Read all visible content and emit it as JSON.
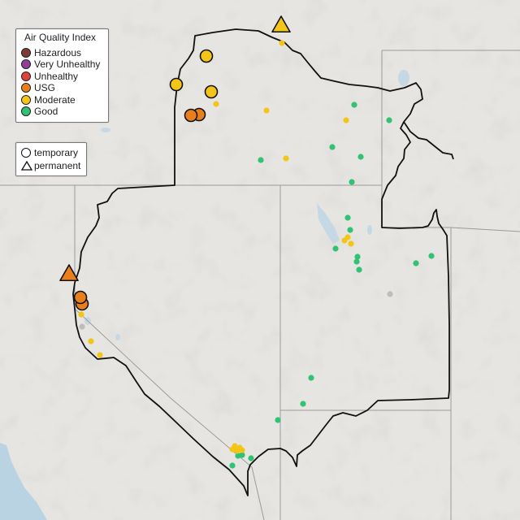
{
  "legend": {
    "title": "Air Quality Index",
    "categories": [
      {
        "label": "Hazardous",
        "color": "#7e3b35"
      },
      {
        "label": "Very Unhealthy",
        "color": "#8f3f97"
      },
      {
        "label": "Unhealthy",
        "color": "#e0403a"
      },
      {
        "label": "USG",
        "color": "#e97f1c"
      },
      {
        "label": "Moderate",
        "color": "#f3c519"
      },
      {
        "label": "Good",
        "color": "#2fc373"
      }
    ],
    "symbols": [
      {
        "label": "temporary",
        "shape": "circle"
      },
      {
        "label": "permanent",
        "shape": "triangle"
      }
    ]
  },
  "colors": {
    "land": "#e7e5e2",
    "water": "#b9d3e3",
    "boundary": "#111111",
    "state_line": "#9a9a9a",
    "no_data": "#bdbdbd"
  }
}
